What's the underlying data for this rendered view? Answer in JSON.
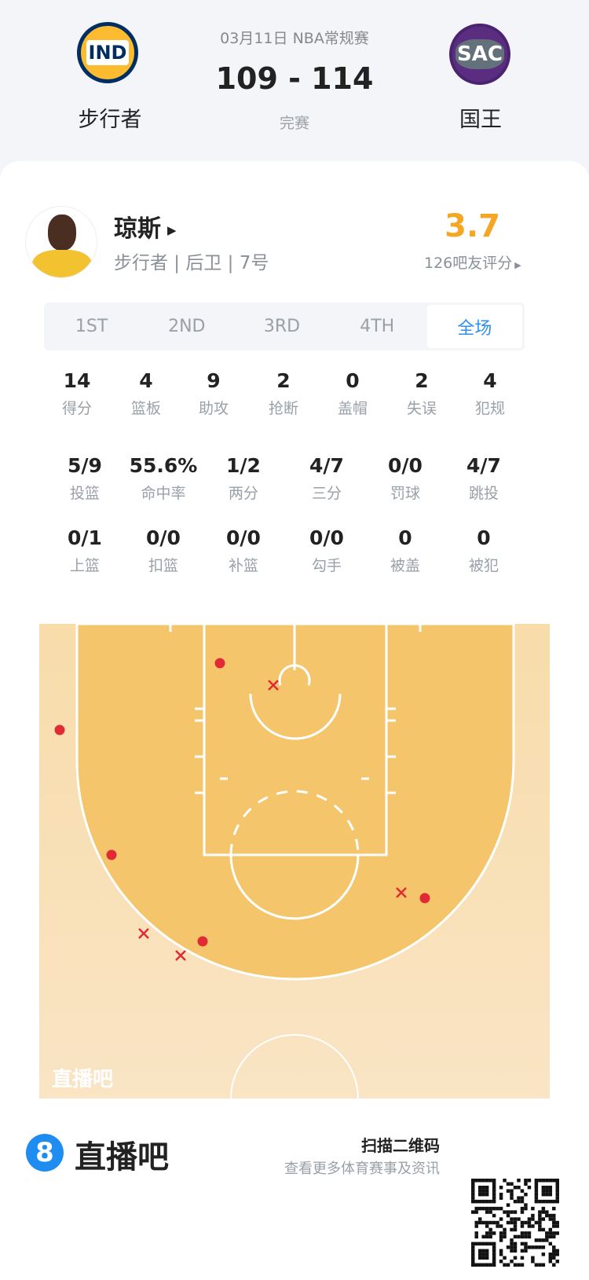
{
  "match": {
    "date_league": "03月11日 NBA常规赛",
    "score": "109 - 114",
    "status": "完赛",
    "home": {
      "abbr": "IND",
      "name": "步行者",
      "color": "#fdbb30"
    },
    "away": {
      "abbr": "SAC",
      "name": "国王",
      "color": "#5a2d81"
    }
  },
  "player": {
    "name": "琼斯",
    "info": "步行者 | 后卫 | 7号",
    "rating": "3.7",
    "rating_count": "126吧友评分",
    "rating_color": "#f5a623"
  },
  "tabs": [
    {
      "label": "1ST"
    },
    {
      "label": "2ND"
    },
    {
      "label": "3RD"
    },
    {
      "label": "4TH"
    },
    {
      "label": "全场",
      "active": true
    }
  ],
  "stats_row1": [
    {
      "v": "14",
      "l": "得分"
    },
    {
      "v": "4",
      "l": "篮板"
    },
    {
      "v": "9",
      "l": "助攻"
    },
    {
      "v": "2",
      "l": "抢断"
    },
    {
      "v": "0",
      "l": "盖帽"
    },
    {
      "v": "2",
      "l": "失误"
    },
    {
      "v": "4",
      "l": "犯规"
    }
  ],
  "stats_row2": [
    {
      "v": "5/9",
      "l": "投篮"
    },
    {
      "v": "55.6%",
      "l": "命中率"
    },
    {
      "v": "1/2",
      "l": "两分"
    },
    {
      "v": "4/7",
      "l": "三分"
    },
    {
      "v": "0/0",
      "l": "罚球"
    },
    {
      "v": "4/7",
      "l": "跳投"
    }
  ],
  "stats_row3": [
    {
      "v": "0/1",
      "l": "上篮"
    },
    {
      "v": "0/0",
      "l": "扣篮"
    },
    {
      "v": "0/0",
      "l": "补篮"
    },
    {
      "v": "0/0",
      "l": "勾手"
    },
    {
      "v": "0",
      "l": "被盖"
    },
    {
      "v": "0",
      "l": "被犯"
    }
  ],
  "shot_chart": {
    "watermark": "直播吧",
    "made_color": "#e02b35",
    "shots": [
      {
        "result": "made"
      },
      {
        "result": "made"
      },
      {
        "result": "made"
      },
      {
        "result": "made"
      },
      {
        "result": "made"
      },
      {
        "result": "missed"
      },
      {
        "result": "missed"
      },
      {
        "result": "missed"
      },
      {
        "result": "missed"
      }
    ]
  },
  "footer": {
    "brand": "直播吧",
    "brand_icon": "8",
    "scan_title": "扫描二维码",
    "scan_sub": "查看更多体育赛事及资讯"
  }
}
